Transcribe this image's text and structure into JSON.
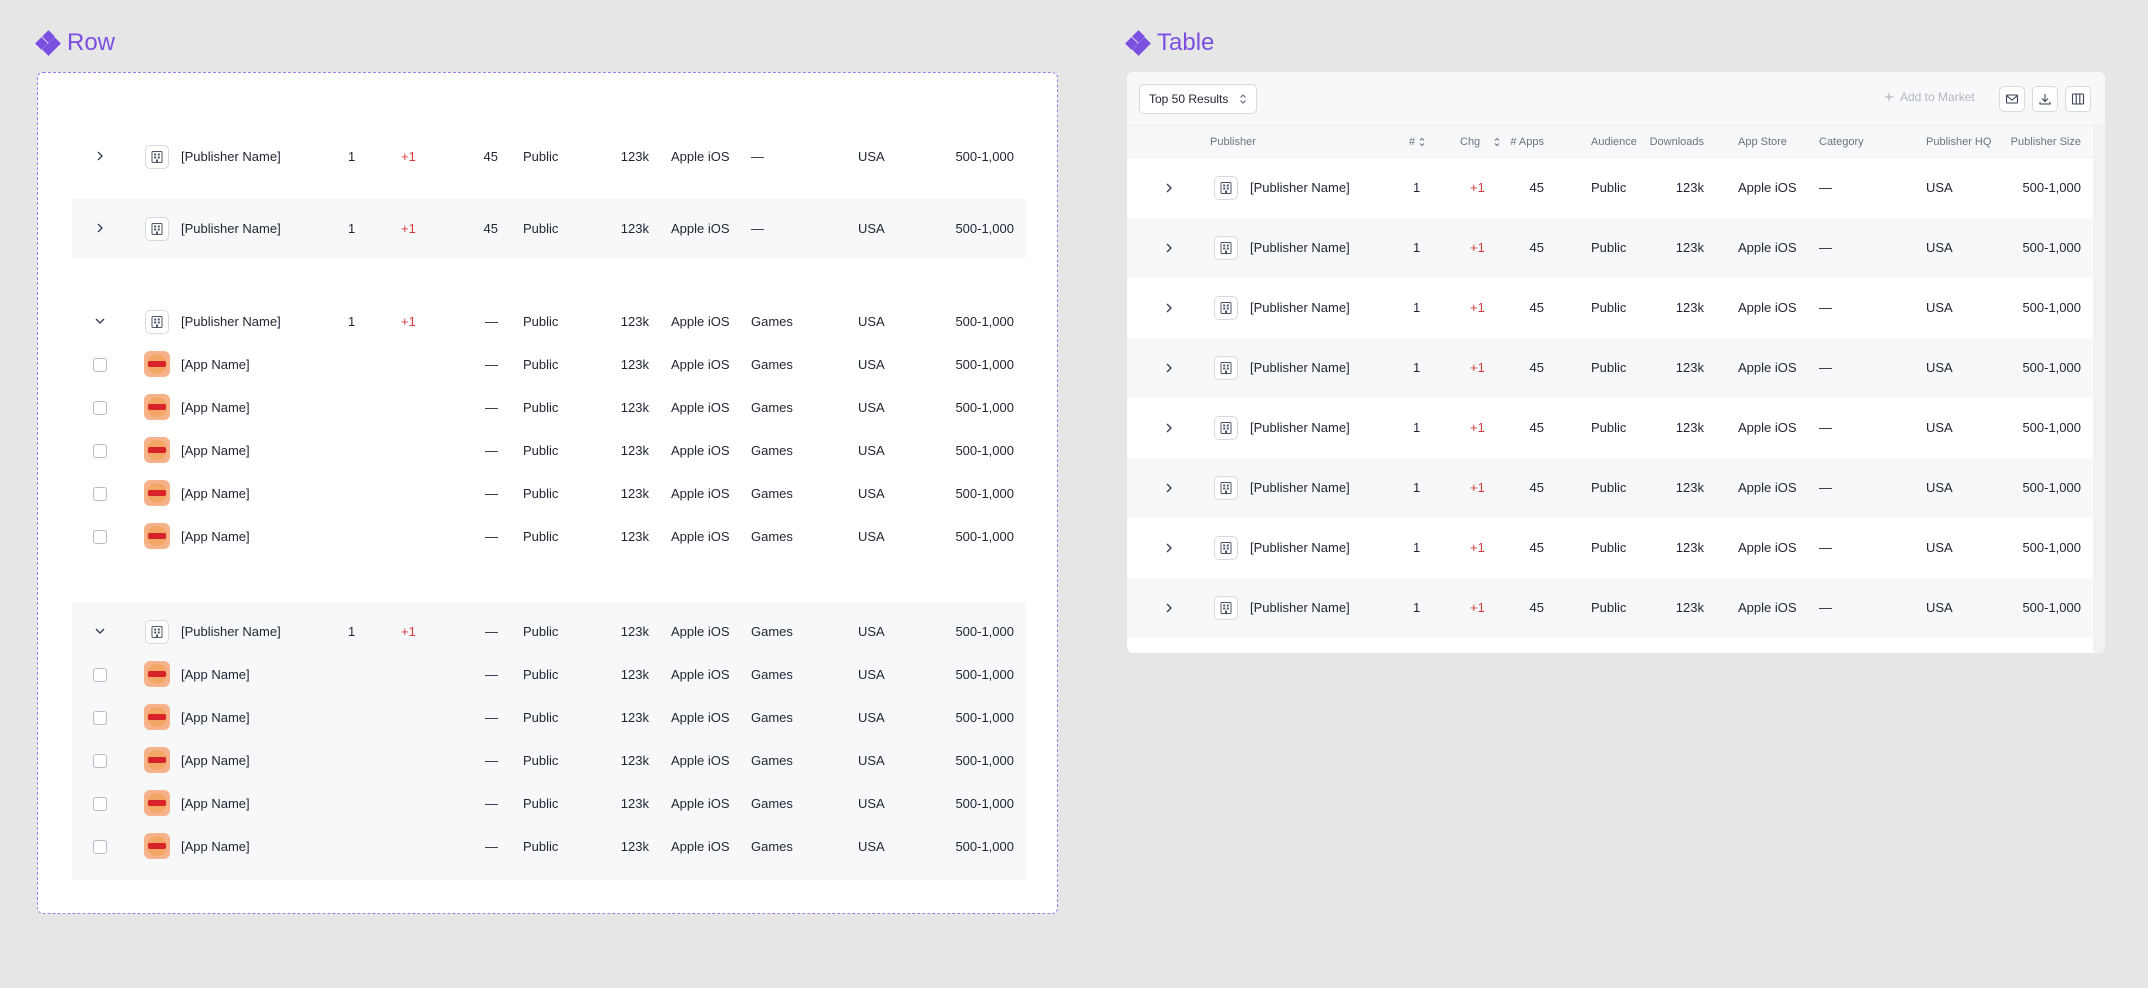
{
  "row_section": {
    "title": "Row",
    "collapsed_rows": [
      {
        "publisher": "[Publisher Name]",
        "rank": "1",
        "chg": "+1",
        "apps": "45",
        "audience": "Public",
        "downloads": "123k",
        "store": "Apple iOS",
        "category": "—",
        "hq": "USA",
        "size": "500-1,000"
      },
      {
        "publisher": "[Publisher Name]",
        "rank": "1",
        "chg": "+1",
        "apps": "45",
        "audience": "Public",
        "downloads": "123k",
        "store": "Apple iOS",
        "category": "—",
        "hq": "USA",
        "size": "500-1,000"
      }
    ],
    "expanded_groups": [
      {
        "publisher": {
          "publisher": "[Publisher Name]",
          "rank": "1",
          "chg": "+1",
          "apps": "—",
          "audience": "Public",
          "downloads": "123k",
          "store": "Apple iOS",
          "category": "Games",
          "hq": "USA",
          "size": "500-1,000"
        },
        "apps": [
          {
            "name": "[App Name]",
            "apps": "—",
            "audience": "Public",
            "downloads": "123k",
            "store": "Apple iOS",
            "category": "Games",
            "hq": "USA",
            "size": "500-1,000"
          },
          {
            "name": "[App Name]",
            "apps": "—",
            "audience": "Public",
            "downloads": "123k",
            "store": "Apple iOS",
            "category": "Games",
            "hq": "USA",
            "size": "500-1,000"
          },
          {
            "name": "[App Name]",
            "apps": "—",
            "audience": "Public",
            "downloads": "123k",
            "store": "Apple iOS",
            "category": "Games",
            "hq": "USA",
            "size": "500-1,000"
          },
          {
            "name": "[App Name]",
            "apps": "—",
            "audience": "Public",
            "downloads": "123k",
            "store": "Apple iOS",
            "category": "Games",
            "hq": "USA",
            "size": "500-1,000"
          },
          {
            "name": "[App Name]",
            "apps": "—",
            "audience": "Public",
            "downloads": "123k",
            "store": "Apple iOS",
            "category": "Games",
            "hq": "USA",
            "size": "500-1,000"
          }
        ]
      },
      {
        "publisher": {
          "publisher": "[Publisher Name]",
          "rank": "1",
          "chg": "+1",
          "apps": "—",
          "audience": "Public",
          "downloads": "123k",
          "store": "Apple iOS",
          "category": "Games",
          "hq": "USA",
          "size": "500-1,000"
        },
        "apps": [
          {
            "name": "[App Name]",
            "apps": "—",
            "audience": "Public",
            "downloads": "123k",
            "store": "Apple iOS",
            "category": "Games",
            "hq": "USA",
            "size": "500-1,000"
          },
          {
            "name": "[App Name]",
            "apps": "—",
            "audience": "Public",
            "downloads": "123k",
            "store": "Apple iOS",
            "category": "Games",
            "hq": "USA",
            "size": "500-1,000"
          },
          {
            "name": "[App Name]",
            "apps": "—",
            "audience": "Public",
            "downloads": "123k",
            "store": "Apple iOS",
            "category": "Games",
            "hq": "USA",
            "size": "500-1,000"
          },
          {
            "name": "[App Name]",
            "apps": "—",
            "audience": "Public",
            "downloads": "123k",
            "store": "Apple iOS",
            "category": "Games",
            "hq": "USA",
            "size": "500-1,000"
          },
          {
            "name": "[App Name]",
            "apps": "—",
            "audience": "Public",
            "downloads": "123k",
            "store": "Apple iOS",
            "category": "Games",
            "hq": "USA",
            "size": "500-1,000"
          }
        ]
      }
    ]
  },
  "table_section": {
    "title": "Table",
    "toolbar": {
      "results_select": "Top 50 Results",
      "add_to_market": "Add to Market",
      "icons": [
        "mail-icon",
        "download-icon",
        "columns-icon"
      ]
    },
    "columns": [
      "Publisher",
      "#",
      "Chg",
      "# Apps",
      "Audience",
      "Downloads",
      "App Store",
      "Category",
      "Publisher HQ",
      "Publisher Size"
    ],
    "rows": [
      {
        "publisher": "[Publisher Name]",
        "rank": "1",
        "chg": "+1",
        "apps": "45",
        "audience": "Public",
        "downloads": "123k",
        "store": "Apple iOS",
        "category": "—",
        "hq": "USA",
        "size": "500-1,000"
      },
      {
        "publisher": "[Publisher Name]",
        "rank": "1",
        "chg": "+1",
        "apps": "45",
        "audience": "Public",
        "downloads": "123k",
        "store": "Apple iOS",
        "category": "—",
        "hq": "USA",
        "size": "500-1,000"
      },
      {
        "publisher": "[Publisher Name]",
        "rank": "1",
        "chg": "+1",
        "apps": "45",
        "audience": "Public",
        "downloads": "123k",
        "store": "Apple iOS",
        "category": "—",
        "hq": "USA",
        "size": "500-1,000"
      },
      {
        "publisher": "[Publisher Name]",
        "rank": "1",
        "chg": "+1",
        "apps": "45",
        "audience": "Public",
        "downloads": "123k",
        "store": "Apple iOS",
        "category": "—",
        "hq": "USA",
        "size": "500-1,000"
      },
      {
        "publisher": "[Publisher Name]",
        "rank": "1",
        "chg": "+1",
        "apps": "45",
        "audience": "Public",
        "downloads": "123k",
        "store": "Apple iOS",
        "category": "—",
        "hq": "USA",
        "size": "500-1,000"
      },
      {
        "publisher": "[Publisher Name]",
        "rank": "1",
        "chg": "+1",
        "apps": "45",
        "audience": "Public",
        "downloads": "123k",
        "store": "Apple iOS",
        "category": "—",
        "hq": "USA",
        "size": "500-1,000"
      },
      {
        "publisher": "[Publisher Name]",
        "rank": "1",
        "chg": "+1",
        "apps": "45",
        "audience": "Public",
        "downloads": "123k",
        "store": "Apple iOS",
        "category": "—",
        "hq": "USA",
        "size": "500-1,000"
      },
      {
        "publisher": "[Publisher Name]",
        "rank": "1",
        "chg": "+1",
        "apps": "45",
        "audience": "Public",
        "downloads": "123k",
        "store": "Apple iOS",
        "category": "—",
        "hq": "USA",
        "size": "500-1,000"
      }
    ]
  },
  "colors": {
    "accent": "#7b4fe0",
    "positive_change": "#d83a3a",
    "row_alt": "#f7f8fa"
  }
}
